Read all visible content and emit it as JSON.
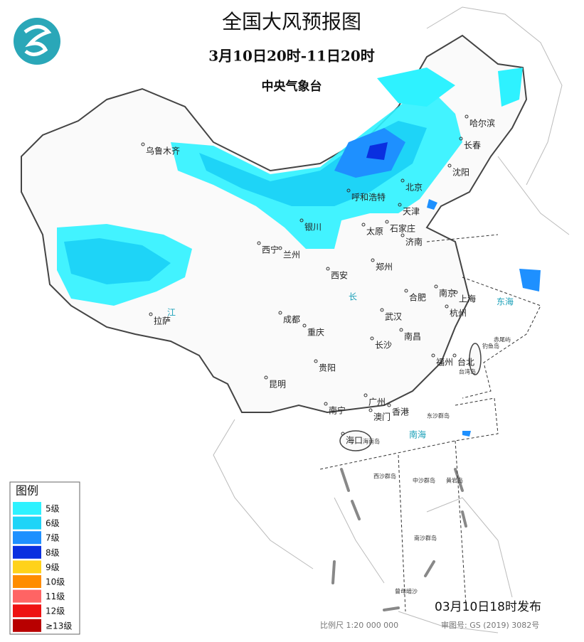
{
  "header": {
    "title": "全国大风预报图",
    "subtitle": "3月10日20时-11日20时",
    "agency": "中央气象台"
  },
  "legend": {
    "title": "图例",
    "items": [
      {
        "label": "5级",
        "color": "#2ef2ff"
      },
      {
        "label": "6级",
        "color": "#1ed4f7"
      },
      {
        "label": "7级",
        "color": "#1e90ff"
      },
      {
        "label": "8级",
        "color": "#0a2fe0"
      },
      {
        "label": "9级",
        "color": "#ffd21a"
      },
      {
        "label": "10级",
        "color": "#ff8c00"
      },
      {
        "label": "11级",
        "color": "#ff6464"
      },
      {
        "label": "12级",
        "color": "#ee1111"
      },
      {
        "label": "≥13级",
        "color": "#b80000"
      }
    ]
  },
  "cities": [
    "乌鲁木齐",
    "哈尔滨",
    "长春",
    "沈阳",
    "北京",
    "天津",
    "呼和浩特",
    "银川",
    "太原",
    "石家庄",
    "济南",
    "西宁",
    "兰州",
    "西安",
    "郑州",
    "合肥",
    "南京",
    "上海",
    "杭州",
    "武汉",
    "成都",
    "重庆",
    "长沙",
    "南昌",
    "拉萨",
    "贵阳",
    "昆明",
    "福州",
    "台北",
    "南宁",
    "广州",
    "澳门",
    "香港",
    "海口"
  ],
  "seas": [
    "东海",
    "南海",
    "长",
    "江"
  ],
  "islands": [
    "东沙群岛",
    "西沙群岛",
    "中沙群岛",
    "黄岩岛",
    "南沙群岛",
    "曾母暗沙",
    "海南岛",
    "台湾岛",
    "钓鱼岛",
    "赤尾屿"
  ],
  "footer": {
    "issued": "03月10日18时发布",
    "scale": "比例尺 1:20 000 000",
    "review": "审图号: GS (2019) 3082号"
  }
}
